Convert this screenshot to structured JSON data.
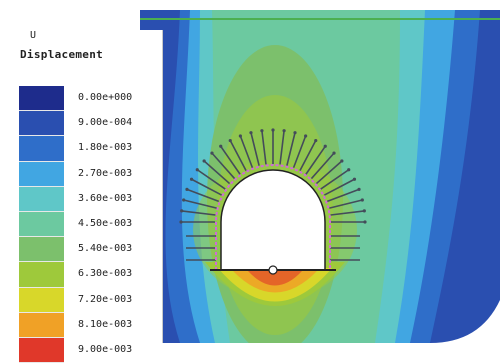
{
  "legend": {
    "title_line1": "U",
    "title_line2": "Displacement",
    "entries": [
      {
        "label": "0.00e+000",
        "color": "#1e2c8c"
      },
      {
        "label": "9.00e-004",
        "color": "#2a4fb0"
      },
      {
        "label": "1.80e-003",
        "color": "#2f6ec9"
      },
      {
        "label": "2.70e-003",
        "color": "#41a6e2"
      },
      {
        "label": "3.60e-003",
        "color": "#5fc7c8"
      },
      {
        "label": "4.50e-003",
        "color": "#6cc9a0"
      },
      {
        "label": "5.40e-003",
        "color": "#7cc06c"
      },
      {
        "label": "6.30e-003",
        "color": "#9ec93b"
      },
      {
        "label": "7.20e-003",
        "color": "#d8d72a"
      },
      {
        "label": "8.10e-003",
        "color": "#f0a126"
      },
      {
        "label": "9.00e-003",
        "color": "#e0382a"
      }
    ]
  },
  "colors": {
    "accent_line": "#4caf50",
    "bolt": "#444c5a",
    "liner": "#222222",
    "inner_ring": "#d06ad6"
  }
}
